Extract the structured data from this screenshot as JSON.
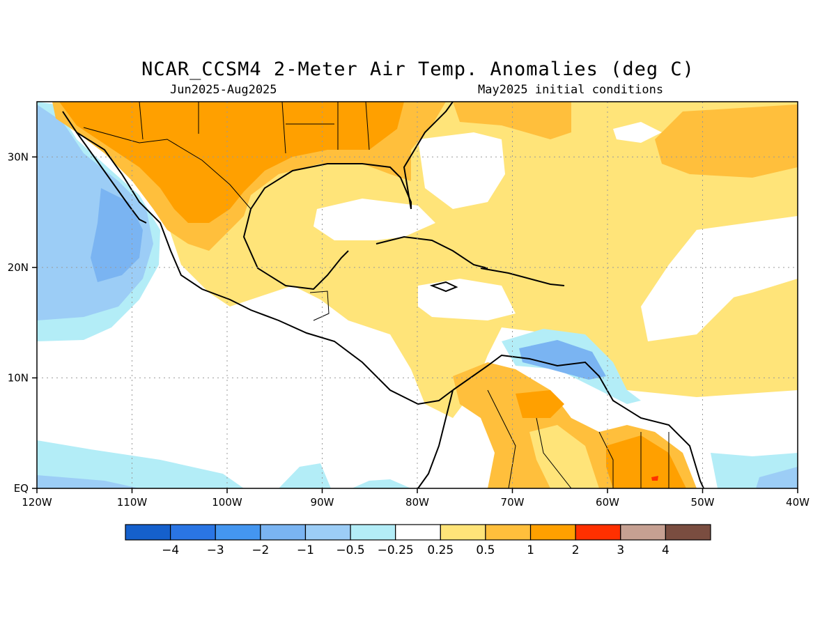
{
  "title": "NCAR_CCSM4 2-Meter Air Temp. Anomalies (deg C)",
  "period": "Jun2025-Aug2025",
  "init": "May2025 initial conditions",
  "map": {
    "lon_range": [
      -120,
      -40
    ],
    "lat_range": [
      0,
      35
    ],
    "x_ticks": [
      "120W",
      "110W",
      "100W",
      "90W",
      "80W",
      "70W",
      "60W",
      "50W",
      "40W"
    ],
    "y_ticks": [
      "EQ",
      "10N",
      "20N",
      "30N"
    ],
    "gridlines": true
  },
  "colorbar": {
    "labels": [
      "-4",
      "-3",
      "-2",
      "-1",
      "-0.5",
      "-0.25",
      "0.25",
      "0.5",
      "1",
      "2",
      "3",
      "4"
    ],
    "colors": [
      "#1560cc",
      "#2a75e4",
      "#4496f0",
      "#7ab4f2",
      "#9ccdf6",
      "#b3edf7",
      "#ffffff",
      "#ffe479",
      "#ffbf3c",
      "#ffa000",
      "#ff3000",
      "#c6a092",
      "#7a4d40"
    ]
  },
  "regions": {
    "ocean_default": "#ffffff",
    "usa_south": "#ffa000",
    "gulf_caribbean": "#ffe479",
    "east_pacific": "#b3edf7",
    "pacific_cold_core": "#7ab4f2",
    "south_america_warm": "#ffbf3c",
    "guiana_hot": "#ffa000",
    "venezuela_cold": "#7ab4f2"
  }
}
